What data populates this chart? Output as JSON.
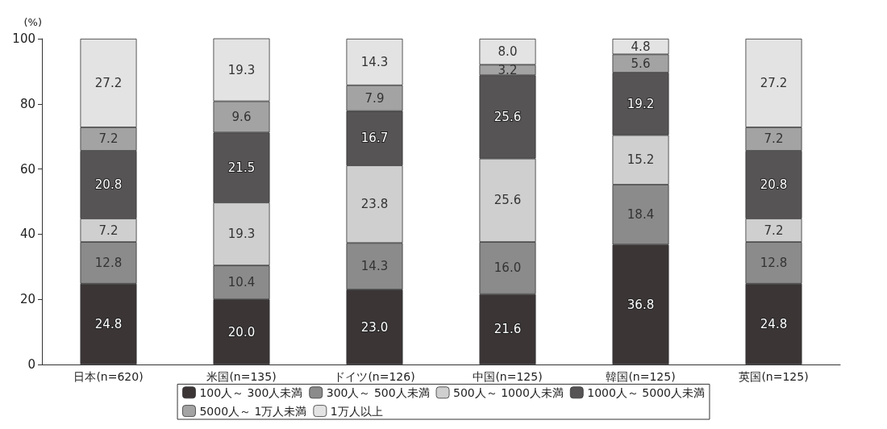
{
  "chart_data": {
    "type": "bar",
    "stacked": true,
    "ylabel": "(%)",
    "categories": [
      "日本(n=620)",
      "米国(n=135)",
      "ドイツ(n=126)",
      "中国(n=125)",
      "韓国(n=125)",
      "英国(n=125)"
    ],
    "series": [
      {
        "name": "100人～ 300人未満",
        "color": "#3b3536",
        "values": [
          24.8,
          20.0,
          23.0,
          21.6,
          36.8,
          24.8
        ],
        "value_labels": [
          "24.8",
          "20.0",
          "23.0",
          "21.6",
          "36.8",
          "24.8"
        ]
      },
      {
        "name": "300人～ 500人未満",
        "color": "#8b8b8b",
        "values": [
          12.8,
          10.4,
          14.3,
          16.0,
          18.4,
          12.8
        ],
        "value_labels": [
          "12.8",
          "10.4",
          "14.3",
          "16.0",
          "18.4",
          "12.8"
        ]
      },
      {
        "name": "500人～ 1000人未満",
        "color": "#cfcfcf",
        "values": [
          7.2,
          19.3,
          23.8,
          25.6,
          15.2,
          7.2
        ],
        "value_labels": [
          "7.2",
          "19.3",
          "23.8",
          "25.6",
          "15.2",
          "7.2"
        ]
      },
      {
        "name": "1000人～ 5000人未満",
        "color": "#575455",
        "values": [
          20.8,
          21.5,
          16.7,
          25.6,
          19.2,
          20.8
        ],
        "value_labels": [
          "20.8",
          "21.5",
          "16.7",
          "25.6",
          "19.2",
          "20.8"
        ]
      },
      {
        "name": "5000人～ 1万人未満",
        "color": "#a3a3a3",
        "values": [
          7.2,
          9.6,
          7.9,
          3.2,
          5.6,
          7.2
        ],
        "value_labels": [
          "7.2",
          "9.6",
          "7.9",
          "3.2",
          "5.6",
          "7.2"
        ]
      },
      {
        "name": "1万人以上",
        "color": "#e3e3e3",
        "values": [
          27.2,
          19.3,
          14.3,
          8.0,
          4.8,
          27.2
        ],
        "value_labels": [
          "27.2",
          "19.3",
          "14.3",
          "8.0",
          "4.8",
          "27.2"
        ]
      }
    ],
    "ylim": [
      0,
      100
    ],
    "yticks": [
      0,
      20,
      40,
      60,
      80,
      100
    ],
    "grid": false,
    "legend": "bottom"
  }
}
